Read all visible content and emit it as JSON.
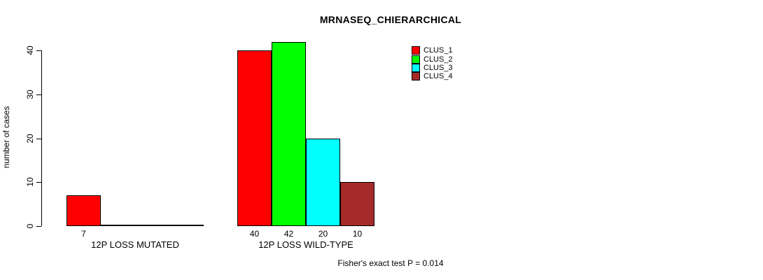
{
  "chart_data": {
    "type": "bar",
    "title": "MRNASEQ_CHIERARCHICAL",
    "xlabel": "",
    "ylabel": "number of cases",
    "categories": [
      "12P LOSS MUTATED",
      "12P LOSS WILD-TYPE"
    ],
    "series": [
      {
        "name": "CLUS_1",
        "color": "#FF0000",
        "values": [
          7,
          40
        ]
      },
      {
        "name": "CLUS_2",
        "color": "#00FF00",
        "values": [
          0,
          42
        ]
      },
      {
        "name": "CLUS_3",
        "color": "#00FFFF",
        "values": [
          0,
          20
        ]
      },
      {
        "name": "CLUS_4",
        "color": "#A52A2A",
        "values": [
          0,
          10
        ]
      }
    ],
    "ylim": [
      0,
      40
    ],
    "yticks": [
      0,
      10,
      20,
      30,
      40
    ],
    "grid": false,
    "legend_position": "top-right",
    "bar_value_labels": "values printed under each nonzero bar",
    "annotation": "Fisher's exact test P = 0.014"
  }
}
